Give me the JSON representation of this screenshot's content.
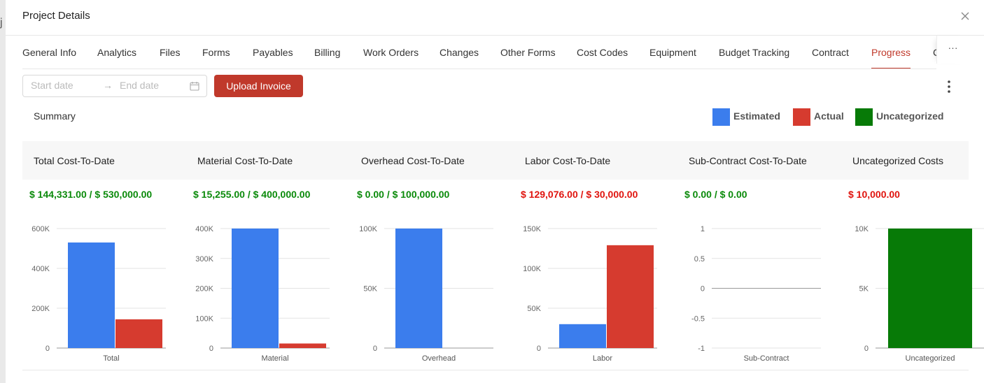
{
  "modal": {
    "title": "Project Details"
  },
  "tabs": [
    {
      "label": "General Info",
      "active": false
    },
    {
      "label": "Analytics",
      "active": false
    },
    {
      "label": "Files",
      "active": false
    },
    {
      "label": "Forms",
      "active": false
    },
    {
      "label": "Payables",
      "active": false
    },
    {
      "label": "Billing",
      "active": false
    },
    {
      "label": "Work Orders",
      "active": false
    },
    {
      "label": "Changes",
      "active": false
    },
    {
      "label": "Other Forms",
      "active": false
    },
    {
      "label": "Cost Codes",
      "active": false
    },
    {
      "label": "Equipment",
      "active": false
    },
    {
      "label": "Budget Tracking",
      "active": false
    },
    {
      "label": "Contract",
      "active": false
    },
    {
      "label": "Progress",
      "active": true
    },
    {
      "label": "C",
      "active": false
    }
  ],
  "tabs_more": "···",
  "toolbar": {
    "start_placeholder": "Start date",
    "end_placeholder": "End date",
    "upload_label": "Upload Invoice"
  },
  "summary_label": "Summary",
  "legend": [
    {
      "label": "Estimated",
      "color": "#3b7ded"
    },
    {
      "label": "Actual",
      "color": "#d63b2f"
    },
    {
      "label": "Uncategorized",
      "color": "#077a07"
    }
  ],
  "colors": {
    "green": "#0a8a0a",
    "red": "#e0140e",
    "accent": "#c0392b"
  },
  "columns": [
    {
      "title": "Total Cost-To-Date",
      "value": "$ 144,331.00 / $ 530,000.00",
      "status": "green"
    },
    {
      "title": "Material Cost-To-Date",
      "value": "$ 15,255.00 / $ 400,000.00",
      "status": "green"
    },
    {
      "title": "Overhead Cost-To-Date",
      "value": "$ 0.00 / $ 100,000.00",
      "status": "green"
    },
    {
      "title": "Labor Cost-To-Date",
      "value": "$ 129,076.00 / $ 30,000.00",
      "status": "red"
    },
    {
      "title": "Sub-Contract Cost-To-Date",
      "value": "$ 0.00 / $ 0.00",
      "status": "green"
    },
    {
      "title": "Uncategorized Costs",
      "value": "$ 10,000.00",
      "status": "red"
    }
  ],
  "chart_data": [
    {
      "type": "bar",
      "categories": [
        "Total"
      ],
      "series": [
        {
          "name": "Estimated",
          "values": [
            530000
          ]
        },
        {
          "name": "Actual",
          "values": [
            144331
          ]
        }
      ],
      "ylim": [
        0,
        600000
      ],
      "yticks": [
        0,
        200000,
        400000,
        600000
      ],
      "ytick_labels": [
        "0",
        "200K",
        "400K",
        "600K"
      ]
    },
    {
      "type": "bar",
      "categories": [
        "Material"
      ],
      "series": [
        {
          "name": "Estimated",
          "values": [
            400000
          ]
        },
        {
          "name": "Actual",
          "values": [
            15255
          ]
        }
      ],
      "ylim": [
        0,
        400000
      ],
      "yticks": [
        0,
        100000,
        200000,
        300000,
        400000
      ],
      "ytick_labels": [
        "0",
        "100K",
        "200K",
        "300K",
        "400K"
      ]
    },
    {
      "type": "bar",
      "categories": [
        "Overhead"
      ],
      "series": [
        {
          "name": "Estimated",
          "values": [
            100000
          ]
        },
        {
          "name": "Actual",
          "values": [
            0
          ]
        }
      ],
      "ylim": [
        0,
        100000
      ],
      "yticks": [
        0,
        50000,
        100000
      ],
      "ytick_labels": [
        "0",
        "50K",
        "100K"
      ]
    },
    {
      "type": "bar",
      "categories": [
        "Labor"
      ],
      "series": [
        {
          "name": "Estimated",
          "values": [
            30000
          ]
        },
        {
          "name": "Actual",
          "values": [
            129076
          ]
        }
      ],
      "ylim": [
        0,
        150000
      ],
      "yticks": [
        0,
        50000,
        100000,
        150000
      ],
      "ytick_labels": [
        "0",
        "50K",
        "100K",
        "150K"
      ]
    },
    {
      "type": "bar",
      "categories": [
        "Sub-Contract"
      ],
      "series": [
        {
          "name": "Estimated",
          "values": [
            0
          ]
        },
        {
          "name": "Actual",
          "values": [
            0
          ]
        }
      ],
      "ylim": [
        -1,
        1
      ],
      "yticks": [
        -1,
        -0.5,
        0,
        0.5,
        1
      ],
      "ytick_labels": [
        "-1",
        "-0.5",
        "0",
        "0.5",
        "1"
      ]
    },
    {
      "type": "bar",
      "categories": [
        "Uncategorized"
      ],
      "series": [
        {
          "name": "Uncategorized",
          "values": [
            10000
          ]
        }
      ],
      "ylim": [
        0,
        10000
      ],
      "yticks": [
        0,
        5000,
        10000
      ],
      "ytick_labels": [
        "0",
        "5K",
        "10K"
      ]
    }
  ]
}
